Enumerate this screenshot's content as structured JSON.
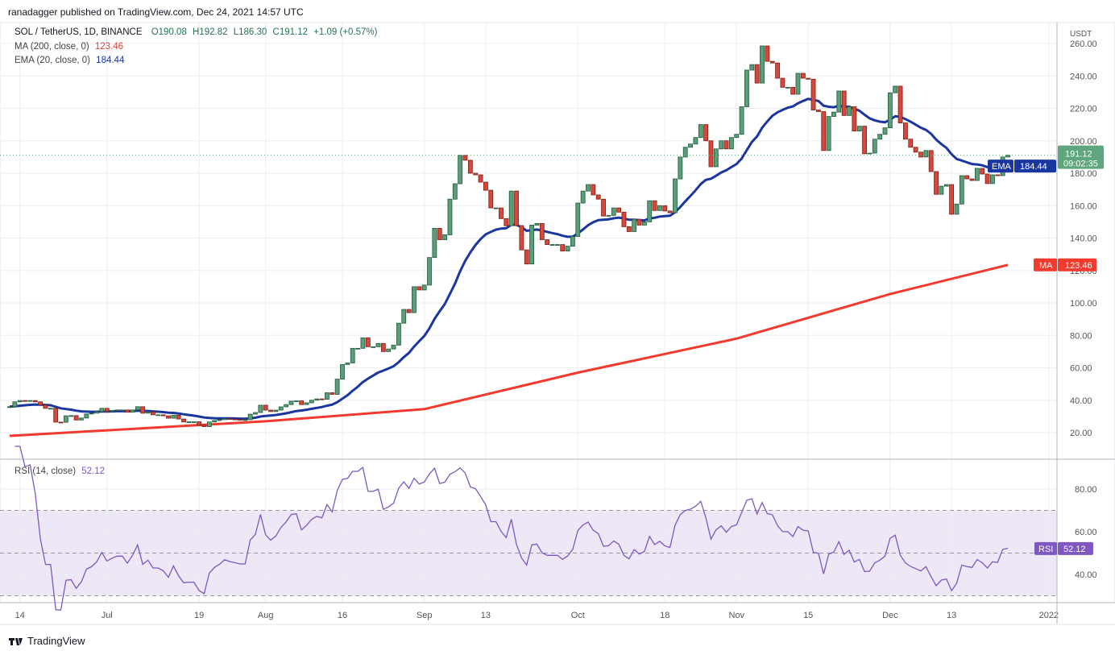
{
  "published": "ranadagger published on TradingView.com, Dec 24, 2021 14:57 UTC",
  "legend": {
    "symbol": "SOL / TetherUS, 1D, BINANCE",
    "open": "O190.08",
    "high": "H192.82",
    "low": "L186.30",
    "close": "C191.12",
    "change": "+1.09 (+0.57%)",
    "ma_label": "MA (200, close, 0)",
    "ma_value": "123.46",
    "ema_label": "EMA (20, close, 0)",
    "ema_value": "184.44",
    "rsi_label": "RSI (14, close)",
    "rsi_value": "52.12"
  },
  "currency": "USDT",
  "tags": {
    "price": "191.12",
    "countdown": "09:02:35",
    "ema_name": "EMA",
    "ema": "184.44",
    "ma_name": "MA",
    "ma": "123.46",
    "rsi_name": "RSI",
    "rsi": "52.12"
  },
  "footer_brand": "TradingView",
  "colors": {
    "up": "#5b9e78",
    "down": "#d9473b",
    "ema": "#1a36a0",
    "ma": "#f23a2e",
    "rsi": "#7e57c2",
    "rsi_band": "#ede7f6",
    "price_tag": "#5fa67e"
  },
  "chart_data": {
    "type": "candlestick",
    "start_date": "2021-06-12",
    "interval": "1D",
    "closes": [
      36,
      39,
      39.8,
      39.4,
      39.8,
      39,
      37,
      35,
      35,
      26.5,
      26.4,
      30.4,
      30.5,
      27.8,
      29,
      31.5,
      32,
      33,
      35,
      33,
      33.6,
      34,
      34,
      32.6,
      34,
      36,
      32,
      32.8,
      31,
      31,
      30.4,
      28.9,
      30.7,
      28.4,
      26.6,
      26.7,
      26.7,
      24.6,
      23.7,
      26.6,
      27.5,
      28,
      28.7,
      28.4,
      28.2,
      28,
      28,
      31.4,
      32.4,
      36.9,
      33.9,
      33,
      33.9,
      35.9,
      37.3,
      39.4,
      39.6,
      37.3,
      38.4,
      40,
      40.8,
      40.6,
      44.6,
      43.6,
      53,
      62,
      63,
      72,
      72,
      78.5,
      73,
      73,
      75,
      70,
      71.6,
      74,
      87.5,
      96,
      94,
      110,
      108,
      111,
      128,
      146,
      139,
      142,
      164,
      173.5,
      191,
      188,
      180,
      179,
      174.5,
      169.5,
      158.6,
      158.6,
      152,
      147.6,
      169,
      147.7,
      132.7,
      124,
      148,
      149,
      139,
      136,
      136,
      136,
      132,
      135,
      141,
      161.6,
      169,
      173,
      166.6,
      164,
      153.6,
      154,
      158.6,
      156,
      147,
      144,
      151.6,
      148,
      150,
      163,
      157,
      160,
      156.7,
      155.6,
      176.5,
      190,
      196,
      198,
      202,
      210,
      200,
      184,
      195,
      200,
      195,
      202,
      204,
      221,
      243.6,
      247,
      235.6,
      258.5,
      249,
      248,
      238.6,
      233,
      233,
      228.7,
      241.6,
      238.6,
      238,
      219,
      218,
      194,
      215,
      217.7,
      230.7,
      215.6,
      221,
      206,
      209,
      192,
      192.4,
      201,
      204,
      208,
      229.6,
      233.7,
      211,
      201,
      196,
      193,
      190,
      194,
      181,
      167,
      172,
      173,
      154.7,
      161,
      178.5,
      176.5,
      175.5,
      183,
      179.5,
      173.6,
      179,
      178.5,
      190,
      191.12
    ],
    "ma200": [
      {
        "date": "2021-06-12",
        "value": 18
      },
      {
        "date": "2021-08-01",
        "value": 27
      },
      {
        "date": "2021-09-01",
        "value": 34.5
      },
      {
        "date": "2021-10-01",
        "value": 57
      },
      {
        "date": "2021-11-01",
        "value": 78
      },
      {
        "date": "2021-12-01",
        "value": 105.5
      },
      {
        "date": "2021-12-24",
        "value": 123.46
      }
    ],
    "ema_period": 20,
    "rsi_period": 14,
    "y_ticks": [
      "20.00",
      "40.00",
      "60.00",
      "80.00",
      "100.00",
      "120.00",
      "140.00",
      "160.00",
      "180.00",
      "200.00",
      "220.00",
      "240.00",
      "260.00"
    ],
    "ylim": [
      20,
      260
    ],
    "rsi_ticks": [
      "40.00",
      "60.00",
      "80.00"
    ],
    "rsi_levels": [
      70,
      50,
      30
    ],
    "x_ticks": [
      {
        "label": "14",
        "date": "2021-06-14"
      },
      {
        "label": "Jul",
        "date": "2021-07-01"
      },
      {
        "label": "19",
        "date": "2021-07-19"
      },
      {
        "label": "Aug",
        "date": "2021-08-01"
      },
      {
        "label": "16",
        "date": "2021-08-16"
      },
      {
        "label": "Sep",
        "date": "2021-09-01"
      },
      {
        "label": "13",
        "date": "2021-09-13"
      },
      {
        "label": "Oct",
        "date": "2021-10-01"
      },
      {
        "label": "18",
        "date": "2021-10-18"
      },
      {
        "label": "Nov",
        "date": "2021-11-01"
      },
      {
        "label": "15",
        "date": "2021-11-15"
      },
      {
        "label": "Dec",
        "date": "2021-12-01"
      },
      {
        "label": "13",
        "date": "2021-12-13"
      },
      {
        "label": "2022",
        "date": "2022-01-01"
      }
    ],
    "grid": true
  }
}
